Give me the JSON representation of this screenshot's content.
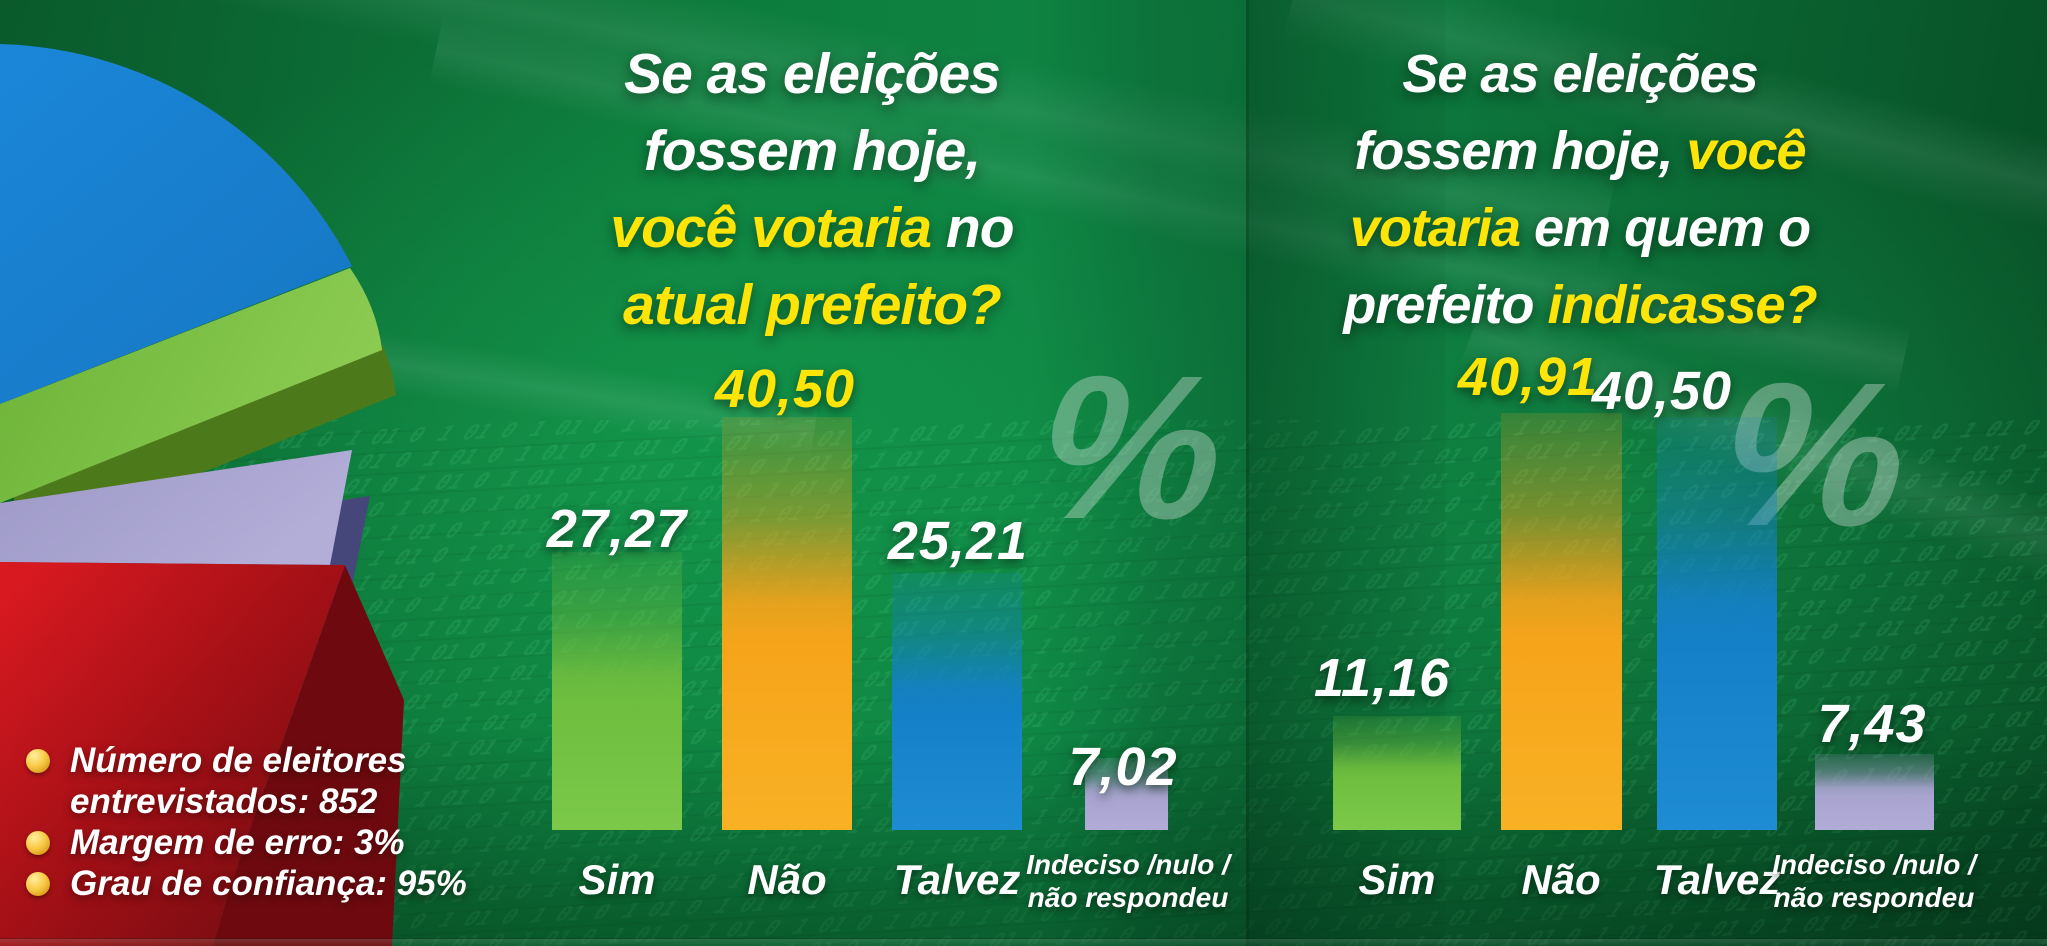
{
  "percent_symbol": "%",
  "palette": {
    "background_green": "#0d7c3c",
    "title_white": "#ffffff",
    "title_yellow": "#ffe408",
    "watermark_gray": "rgba(208,222,214,0.40)",
    "bar_green": "#6fbe3f",
    "bar_green_light": "#7cc94a",
    "bar_orange": "#f6a41a",
    "bar_orange_light": "#f9b124",
    "bar_blue": "#1480c8",
    "bar_blue_light": "#1e8cd2",
    "bar_lavender": "#a8a4cf",
    "bar_lavender_light": "#b1acd7",
    "pie_blue": "#1a80d2",
    "pie_green": "#7cc348",
    "pie_green_side": "#4c7a1b",
    "pie_lavender": "#a9a5cf",
    "pie_purple_side": "#45477b",
    "pie_red": "#c41318",
    "pie_red_dark": "#7f0e13",
    "bullet_gold": "#f7c843"
  },
  "survey_info": {
    "items": [
      {
        "lines": [
          "Número de eleitores",
          "entrevistados: 852"
        ]
      },
      {
        "lines": [
          "Margem de erro: 3%"
        ]
      },
      {
        "lines": [
          "Grau de confiança: 95%"
        ]
      }
    ]
  },
  "chart_data": [
    {
      "type": "bar",
      "title": "Se as eleições fossem hoje, você votaria no atual prefeito?",
      "title_lines": [
        [
          {
            "text": "Se as eleições",
            "yellow": false
          }
        ],
        [
          {
            "text": "fossem hoje,",
            "yellow": false
          }
        ],
        [
          {
            "text": "você votaria",
            "yellow": true
          },
          {
            "text": " no",
            "yellow": false
          }
        ],
        [
          {
            "text": "atual prefeito?",
            "yellow": true
          }
        ]
      ],
      "unit": "%",
      "categories": [
        "Sim",
        "Não",
        "Talvez",
        "Indeciso /nulo / não respondeu"
      ],
      "category_display": [
        [
          "Sim"
        ],
        [
          "Não"
        ],
        [
          "Talvez"
        ],
        [
          "Indeciso /nulo /",
          "não respondeu"
        ]
      ],
      "values": [
        27.27,
        40.5,
        25.21,
        7.02
      ],
      "value_labels": [
        "27,27",
        "40,50",
        "25,21",
        "7,02"
      ],
      "value_label_colors": [
        "white",
        "yellow",
        "white",
        "white"
      ],
      "bar_colors": [
        "green",
        "orange",
        "blue",
        "lavender"
      ],
      "ylim": [
        0,
        45
      ],
      "grid": false,
      "legend": "none"
    },
    {
      "type": "bar",
      "title": "Se as eleições fossem hoje, você votaria em quem o prefeito indicasse?",
      "title_lines": [
        [
          {
            "text": "Se as eleições",
            "yellow": false
          }
        ],
        [
          {
            "text": "fossem hoje, ",
            "yellow": false
          },
          {
            "text": "você",
            "yellow": true
          }
        ],
        [
          {
            "text": "votaria",
            "yellow": true
          },
          {
            "text": " em quem o",
            "yellow": false
          }
        ],
        [
          {
            "text": "prefeito ",
            "yellow": false
          },
          {
            "text": "indicasse?",
            "yellow": true
          }
        ]
      ],
      "unit": "%",
      "categories": [
        "Sim",
        "Não",
        "Talvez",
        "Indeciso /nulo / não respondeu"
      ],
      "category_display": [
        [
          "Sim"
        ],
        [
          "Não"
        ],
        [
          "Talvez"
        ],
        [
          "Indeciso /nulo /",
          "não respondeu"
        ]
      ],
      "values": [
        11.16,
        40.91,
        40.5,
        7.43
      ],
      "value_labels": [
        "11,16",
        "40,91",
        "40,50",
        "7,43"
      ],
      "value_label_colors": [
        "white",
        "yellow",
        "white",
        "white"
      ],
      "bar_colors": [
        "green",
        "orange",
        "blue",
        "lavender"
      ],
      "ylim": [
        0,
        45
      ],
      "grid": false,
      "legend": "none"
    }
  ],
  "decoration": {
    "pie_slice_colors": [
      "#1a80d2",
      "#7cc348",
      "#a9a5cf",
      "#c41318"
    ]
  }
}
